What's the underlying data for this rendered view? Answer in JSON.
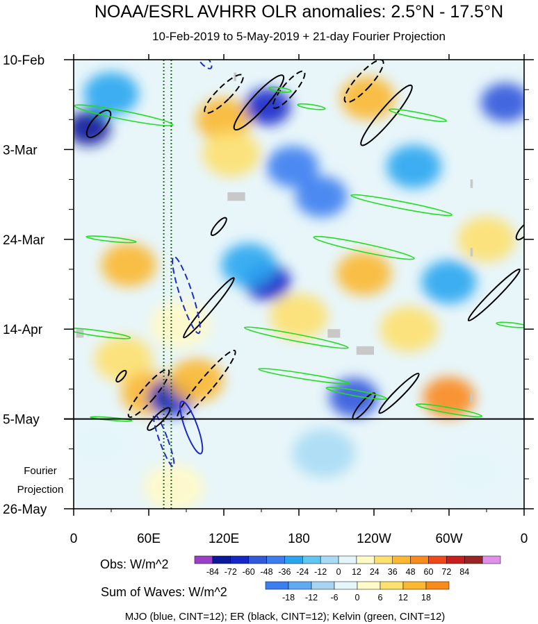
{
  "chart_data": {
    "type": "heatmap",
    "title": "NOAA/ESRL AVHRR OLR anomalies: 2.5°N - 17.5°N",
    "subtitle": "10-Feb-2019 to 5-May-2019 + 21-day Fourier Projection",
    "x_axis": {
      "range_deg_east": [
        0,
        360
      ],
      "ticks": [
        {
          "lon": 0,
          "label": "0"
        },
        {
          "lon": 60,
          "label": "60E"
        },
        {
          "lon": 120,
          "label": "120E"
        },
        {
          "lon": 180,
          "label": "180"
        },
        {
          "lon": 240,
          "label": "120W"
        },
        {
          "lon": 300,
          "label": "60W"
        },
        {
          "lon": 360,
          "label": "0"
        }
      ]
    },
    "y_axis": {
      "range_days": [
        0,
        105
      ],
      "direction": "time increases downward",
      "ticks": [
        {
          "day": 0,
          "label": "10-Feb"
        },
        {
          "day": 21,
          "label": "3-Mar"
        },
        {
          "day": 42,
          "label": "24-Mar"
        },
        {
          "day": 63,
          "label": "14-Apr"
        },
        {
          "day": 84,
          "label": "5-May"
        },
        {
          "day": 105,
          "label": "26-May"
        }
      ],
      "projection_start_day": 84,
      "projection_label_line1": "Fourier",
      "projection_label_line2": "Projection"
    },
    "obs_colorbar": {
      "label": "Obs: W/m^2",
      "levels": [
        "-84",
        "-72",
        "-60",
        "-48",
        "-36",
        "-24",
        "-12",
        "0",
        "12",
        "24",
        "36",
        "48",
        "60",
        "72",
        "84"
      ],
      "colors": [
        "#9b3fc9",
        "#0a1a9a",
        "#1428c8",
        "#3258dc",
        "#3c7ef0",
        "#2aa6f0",
        "#60c6f2",
        "#a8dcf4",
        "#e4f6fa",
        "#fffac8",
        "#fde06e",
        "#fbb830",
        "#f98a1c",
        "#f04818",
        "#c81e1e",
        "#9a2424",
        "#e090e8"
      ]
    },
    "waves_colorbar": {
      "label": "Sum of Waves: W/m^2",
      "levels": [
        "-18",
        "-12",
        "-6",
        "0",
        "6",
        "12",
        "18"
      ],
      "colors": [
        "#3c7ef0",
        "#60aaf2",
        "#a8d4f4",
        "#e4f6fa",
        "#fffac8",
        "#fde06e",
        "#fbb830",
        "#f98a1c"
      ]
    },
    "waves_legend": "MJO (blue, CINT=12); ER (black, CINT=12); Kelvin (green, CINT=12)",
    "contour_colors": {
      "mjo": "#1a2bc8",
      "er": "#000000",
      "kelvin": "#22dd22",
      "reference_lines": "#1a6a1a",
      "missing": "#c8c8c8"
    },
    "reference_longitudes": [
      72,
      78
    ],
    "anomaly_features": [
      {
        "lon": 12,
        "day": 16,
        "value": -84
      },
      {
        "lon": 30,
        "day": 8,
        "value": -36
      },
      {
        "lon": 44,
        "day": 48,
        "value": 36
      },
      {
        "lon": 40,
        "day": 70,
        "value": 24
      },
      {
        "lon": 60,
        "day": 78,
        "value": 36
      },
      {
        "lon": 78,
        "day": 79,
        "value": -72
      },
      {
        "lon": 85,
        "day": 62,
        "value": 12
      },
      {
        "lon": 98,
        "day": 75,
        "value": 36
      },
      {
        "lon": 120,
        "day": 14,
        "value": 36
      },
      {
        "lon": 126,
        "day": 22,
        "value": 24
      },
      {
        "lon": 155,
        "day": 11,
        "value": -72
      },
      {
        "lon": 175,
        "day": 25,
        "value": -48
      },
      {
        "lon": 155,
        "day": 52,
        "value": -72
      },
      {
        "lon": 140,
        "day": 48,
        "value": -36
      },
      {
        "lon": 198,
        "day": 32,
        "value": -48
      },
      {
        "lon": 180,
        "day": 60,
        "value": 24
      },
      {
        "lon": 235,
        "day": 9,
        "value": 36
      },
      {
        "lon": 272,
        "day": 25,
        "value": -36
      },
      {
        "lon": 232,
        "day": 50,
        "value": 36
      },
      {
        "lon": 268,
        "day": 63,
        "value": 24
      },
      {
        "lon": 300,
        "day": 79,
        "value": 48
      },
      {
        "lon": 224,
        "day": 79,
        "value": -60
      },
      {
        "lon": 345,
        "day": 10,
        "value": -60
      },
      {
        "lon": 330,
        "day": 42,
        "value": 24
      },
      {
        "lon": 300,
        "day": 52,
        "value": -36
      },
      {
        "lon": 20,
        "day": 90,
        "value": 6
      },
      {
        "lon": 80,
        "day": 100,
        "value": 12
      },
      {
        "lon": 200,
        "day": 92,
        "value": -6
      },
      {
        "lon": 320,
        "day": 96,
        "value": 6
      }
    ],
    "wave_contours": [
      {
        "wave": "er",
        "sign": "positive",
        "lon": 20,
        "day": 15,
        "rx": 10,
        "ry": 24,
        "tilt": 40
      },
      {
        "wave": "er",
        "sign": "negative",
        "lon": 120,
        "day": 8,
        "rx": 10,
        "ry": 38,
        "tilt": 45
      },
      {
        "wave": "er",
        "sign": "positive",
        "lon": 148,
        "day": 10,
        "rx": 11,
        "ry": 52,
        "tilt": 42
      },
      {
        "wave": "er",
        "sign": "negative",
        "lon": 172,
        "day": 7,
        "rx": 9,
        "ry": 34,
        "tilt": 40
      },
      {
        "wave": "er",
        "sign": "negative",
        "lon": 232,
        "day": 5,
        "rx": 11,
        "ry": 40,
        "tilt": 42
      },
      {
        "wave": "er",
        "sign": "positive",
        "lon": 250,
        "day": 13,
        "rx": 10,
        "ry": 56,
        "tilt": 40
      },
      {
        "wave": "er",
        "sign": "positive",
        "lon": 116,
        "day": 39,
        "rx": 5,
        "ry": 16,
        "tilt": 40
      },
      {
        "wave": "er",
        "sign": "positive",
        "lon": 360,
        "day": 40,
        "rx": 6,
        "ry": 16,
        "tilt": 40
      },
      {
        "wave": "er",
        "sign": "positive",
        "lon": 108,
        "day": 58,
        "rx": 6,
        "ry": 56,
        "tilt": 40
      },
      {
        "wave": "er",
        "sign": "positive",
        "lon": 336,
        "day": 55,
        "rx": 6,
        "ry": 52,
        "tilt": 45
      },
      {
        "wave": "er",
        "sign": "negative",
        "lon": 60,
        "day": 78,
        "rx": 10,
        "ry": 44,
        "tilt": 40
      },
      {
        "wave": "er",
        "sign": "negative",
        "lon": 106,
        "day": 76,
        "rx": 10,
        "ry": 64,
        "tilt": 40
      },
      {
        "wave": "er",
        "sign": "positive",
        "lon": 260,
        "day": 78,
        "rx": 6,
        "ry": 40,
        "tilt": 45
      },
      {
        "wave": "er",
        "sign": "positive",
        "lon": 68,
        "day": 84,
        "rx": 6,
        "ry": 22,
        "tilt": 45
      },
      {
        "wave": "er",
        "sign": "positive",
        "lon": 232,
        "day": 81,
        "rx": 6,
        "ry": 24,
        "tilt": 40
      },
      {
        "wave": "er",
        "sign": "positive",
        "lon": 38,
        "day": 74,
        "rx": 4,
        "ry": 10,
        "tilt": 40
      },
      {
        "wave": "mjo",
        "sign": "negative",
        "lon": 90,
        "day": 55,
        "rx": 9,
        "ry": 58,
        "tilt": -18
      },
      {
        "wave": "mjo",
        "sign": "positive",
        "lon": 94,
        "day": 86,
        "rx": 9,
        "ry": 40,
        "tilt": -20
      },
      {
        "wave": "mjo",
        "sign": "negative",
        "lon": 72,
        "day": 89,
        "rx": 6,
        "ry": 40,
        "tilt": -20
      },
      {
        "wave": "mjo",
        "sign": "negative",
        "lon": 104,
        "day": 0,
        "rx": 6,
        "ry": 16,
        "tilt": -40
      },
      {
        "wave": "kelvin",
        "sign": "positive",
        "lon": 40,
        "day": 13,
        "rx": 6,
        "ry": 72,
        "tilt": -79
      },
      {
        "wave": "kelvin",
        "sign": "positive",
        "lon": 275,
        "day": 13,
        "rx": 4,
        "ry": 42,
        "tilt": -79
      },
      {
        "wave": "kelvin",
        "sign": "positive",
        "lon": 262,
        "day": 34,
        "rx": 5,
        "ry": 74,
        "tilt": -79
      },
      {
        "wave": "kelvin",
        "sign": "positive",
        "lon": 232,
        "day": 44,
        "rx": 6,
        "ry": 74,
        "tilt": -78
      },
      {
        "wave": "kelvin",
        "sign": "positive",
        "lon": 30,
        "day": 42,
        "rx": 3,
        "ry": 36,
        "tilt": -84
      },
      {
        "wave": "kelvin",
        "sign": "positive",
        "lon": 20,
        "day": 64,
        "rx": 4,
        "ry": 46,
        "tilt": -82
      },
      {
        "wave": "kelvin",
        "sign": "positive",
        "lon": 178,
        "day": 65,
        "rx": 5,
        "ry": 76,
        "tilt": -79
      },
      {
        "wave": "kelvin",
        "sign": "positive",
        "lon": 184,
        "day": 74,
        "rx": 4,
        "ry": 66,
        "tilt": -81
      },
      {
        "wave": "kelvin",
        "sign": "positive",
        "lon": 226,
        "day": 78,
        "rx": 4,
        "ry": 44,
        "tilt": -80
      },
      {
        "wave": "kelvin",
        "sign": "positive",
        "lon": 300,
        "day": 82,
        "rx": 4,
        "ry": 48,
        "tilt": -80
      },
      {
        "wave": "kelvin",
        "sign": "positive",
        "lon": 350,
        "day": 62,
        "rx": 3,
        "ry": 22,
        "tilt": -84
      },
      {
        "wave": "kelvin",
        "sign": "positive",
        "lon": 30,
        "day": 84,
        "rx": 2,
        "ry": 30,
        "tilt": -85
      },
      {
        "wave": "kelvin",
        "sign": "positive",
        "lon": 165,
        "day": 7,
        "rx": 3,
        "ry": 16,
        "tilt": -82
      },
      {
        "wave": "kelvin",
        "sign": "positive",
        "lon": 190,
        "day": 11,
        "rx": 3,
        "ry": 20,
        "tilt": -82
      }
    ],
    "missing_data": [
      {
        "lon": 130,
        "day": 32,
        "wlon": 14,
        "wday": 2
      },
      {
        "lon": 208,
        "day": 64,
        "wlon": 10,
        "wday": 2
      },
      {
        "lon": 233,
        "day": 68,
        "wlon": 14,
        "wday": 2
      },
      {
        "lon": 5,
        "day": 64,
        "wlon": 6,
        "wday": 2
      },
      {
        "lon": 318,
        "day": 29,
        "wlon": 2,
        "wday": 2
      },
      {
        "lon": 318,
        "day": 45,
        "wlon": 2,
        "wday": 2
      },
      {
        "lon": 318,
        "day": 79,
        "wlon": 2,
        "wday": 2
      },
      {
        "lon": 129,
        "day": 4,
        "wlon": 2,
        "wday": 2
      }
    ]
  }
}
